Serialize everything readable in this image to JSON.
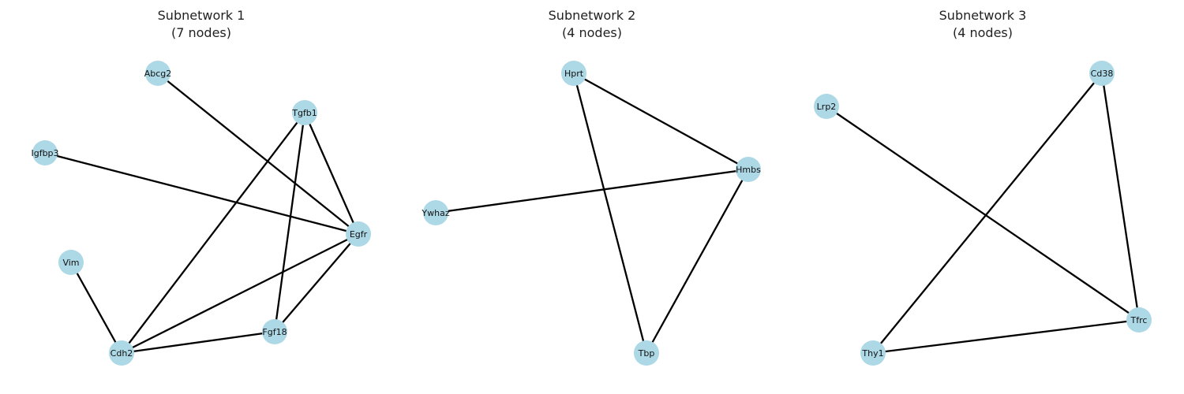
{
  "style": {
    "node_color": "#add8e6",
    "edge_color": "#000000",
    "background": "#ffffff"
  },
  "panels": [
    {
      "title_line1": "Subnetwork 1",
      "title_line2": "(7 nodes)",
      "nodes": [
        "Abcg2",
        "Tgfb1",
        "Igfbp3",
        "Egfr",
        "Vim",
        "Fgf18",
        "Cdh2"
      ],
      "edges": [
        [
          "Abcg2",
          "Egfr"
        ],
        [
          "Tgfb1",
          "Egfr"
        ],
        [
          "Tgfb1",
          "Cdh2"
        ],
        [
          "Tgfb1",
          "Fgf18"
        ],
        [
          "Igfbp3",
          "Egfr"
        ],
        [
          "Egfr",
          "Cdh2"
        ],
        [
          "Egfr",
          "Fgf18"
        ],
        [
          "Vim",
          "Cdh2"
        ],
        [
          "Cdh2",
          "Fgf18"
        ]
      ]
    },
    {
      "title_line1": "Subnetwork 2",
      "title_line2": "(4 nodes)",
      "nodes": [
        "Hprt",
        "Hmbs",
        "Ywhaz",
        "Tbp"
      ],
      "edges": [
        [
          "Hprt",
          "Hmbs"
        ],
        [
          "Hprt",
          "Tbp"
        ],
        [
          "Hmbs",
          "Ywhaz"
        ],
        [
          "Hmbs",
          "Tbp"
        ]
      ]
    },
    {
      "title_line1": "Subnetwork 3",
      "title_line2": "(4 nodes)",
      "nodes": [
        "Cd38",
        "Lrp2",
        "Tfrc",
        "Thy1"
      ],
      "edges": [
        [
          "Cd38",
          "Thy1"
        ],
        [
          "Cd38",
          "Tfrc"
        ],
        [
          "Lrp2",
          "Tfrc"
        ],
        [
          "Thy1",
          "Tfrc"
        ]
      ]
    }
  ]
}
